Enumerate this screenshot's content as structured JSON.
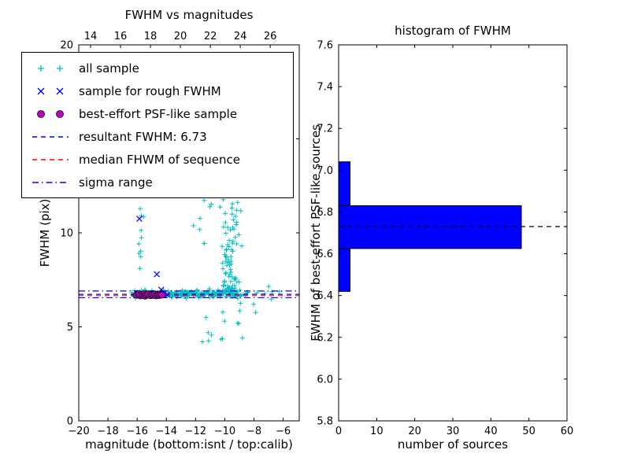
{
  "chart_data": [
    {
      "type": "scatter",
      "title": "FWHM vs magnitudes",
      "xlabel": "magnitude (bottom:isnt / top:calib)",
      "ylabel": "FWHM (pix)",
      "xlim": [
        -20,
        -4.9
      ],
      "ylim": [
        0,
        20
      ],
      "x2lim": [
        13.21,
        27.94
      ],
      "xticks": {
        "values": [
          -20,
          -18,
          -16,
          -14,
          -12,
          -10,
          -8,
          -6
        ],
        "labels": [
          "−20",
          "−18",
          "−16",
          "−14",
          "−12",
          "−10",
          "−8",
          "−6"
        ]
      },
      "x2ticks": {
        "values": [
          14,
          16,
          18,
          20,
          22,
          24,
          26
        ],
        "labels": [
          "14",
          "16",
          "18",
          "20",
          "22",
          "24",
          "26"
        ]
      },
      "yticks": {
        "values": [
          0,
          5,
          10,
          15,
          20
        ],
        "labels": [
          "0",
          "5",
          "10",
          "15",
          "20"
        ]
      },
      "series": [
        {
          "name": "all sample",
          "marker": "plus",
          "color": "#00bfbf",
          "seed": 42,
          "clusters": [
            {
              "count": 170,
              "x": {
                "dist": "uniform",
                "a": -16.4,
                "b": -8.4
              },
              "y": {
                "dist": "normal",
                "mean": 6.75,
                "sd": 0.1
              }
            },
            {
              "count": 60,
              "x": {
                "dist": "uniform",
                "a": -14.6,
                "b": -10.0
              },
              "y": {
                "dist": "normal",
                "mean": 6.75,
                "sd": 0.07
              }
            },
            {
              "count": 80,
              "x": {
                "dist": "normal",
                "mean": -9.7,
                "sd": 0.3
              },
              "y": {
                "dist": "power",
                "base": 6.85,
                "range": 5.9,
                "pow": 2.2
              }
            },
            {
              "count": 28,
              "x": {
                "dist": "uniform",
                "a": -12.3,
                "b": -8.8
              },
              "y": {
                "dist": "uniform",
                "a": 9.2,
                "b": 13.3
              }
            },
            {
              "count": 10,
              "x": {
                "dist": "normal",
                "mean": -15.75,
                "sd": 0.12
              },
              "y": {
                "dist": "uniform",
                "a": 7.6,
                "b": 11.3
              }
            },
            {
              "count": 14,
              "x": {
                "dist": "uniform",
                "a": -12.2,
                "b": -8.3
              },
              "y": {
                "dist": "uniform",
                "a": 4.2,
                "b": 6.3
              }
            },
            {
              "count": 8,
              "x": {
                "dist": "uniform",
                "a": -8.3,
                "b": -6.2
              },
              "y": {
                "dist": "normal",
                "mean": 6.6,
                "sd": 0.35
              }
            },
            {
              "count": 10,
              "x": {
                "dist": "normal",
                "mean": -9.6,
                "sd": 0.25
              },
              "y": {
                "dist": "uniform",
                "a": 12.0,
                "b": 13.6
              }
            }
          ]
        },
        {
          "name": "sample for rough FWHM",
          "marker": "x",
          "color": "#0000ff",
          "points": [
            [
              -15.85,
              10.75
            ],
            [
              -14.65,
              7.8
            ],
            [
              -15.55,
              6.72
            ],
            [
              -15.2,
              6.78
            ],
            [
              -14.95,
              6.7
            ],
            [
              -14.75,
              6.74
            ],
            [
              -14.5,
              6.68
            ],
            [
              -14.2,
              6.73
            ],
            [
              -13.95,
              6.7
            ],
            [
              -14.35,
              6.98
            ]
          ]
        },
        {
          "name": "best-effort PSF-like sample",
          "marker": "circle",
          "color": "#bf00bf",
          "edge": "#000000",
          "points": [
            [
              -16.05,
              6.7
            ],
            [
              -15.9,
              6.74
            ],
            [
              -15.8,
              6.66
            ],
            [
              -15.7,
              6.72
            ],
            [
              -15.6,
              6.68
            ],
            [
              -15.5,
              6.75
            ],
            [
              -15.45,
              6.65
            ],
            [
              -15.35,
              6.7
            ],
            [
              -15.25,
              6.73
            ],
            [
              -15.1,
              6.67
            ],
            [
              -15.0,
              6.72
            ],
            [
              -14.9,
              6.69
            ],
            [
              -14.8,
              6.74
            ],
            [
              -14.7,
              6.66
            ],
            [
              -14.6,
              6.71
            ],
            [
              -14.5,
              6.68
            ],
            [
              -14.4,
              6.73
            ],
            [
              -14.3,
              6.7
            ]
          ]
        }
      ],
      "hlines": [
        {
          "name": "resultant FWHM",
          "y": 6.73,
          "color": "#0000ff",
          "style": "dashed"
        },
        {
          "name": "median FHWM of sequence",
          "y": 6.66,
          "color": "#ff0000",
          "style": "dashed"
        },
        {
          "name": "sigma range low",
          "y": 6.55,
          "color": "#0000ff",
          "style": "dashdot"
        },
        {
          "name": "sigma range high",
          "y": 6.91,
          "color": "#0000ff",
          "style": "dashdot"
        }
      ]
    },
    {
      "type": "bar",
      "orientation": "horizontal",
      "title": "histogram of FWHM",
      "xlabel": "number of sources",
      "ylabel": "FWHM of best-effort PSF-like sources",
      "xlim": [
        0,
        60
      ],
      "ylim": [
        5.8,
        7.6
      ],
      "bin_edges": [
        6.42,
        6.625,
        6.83,
        7.04
      ],
      "counts": [
        3,
        48,
        3
      ],
      "bar_color": "#0000ff",
      "bar_edge": "#000000",
      "dashed_line": {
        "y": 6.73,
        "color": "#000000",
        "style": "dashed"
      },
      "xticks": {
        "values": [
          0,
          10,
          20,
          30,
          40,
          50,
          60
        ],
        "labels": [
          "0",
          "10",
          "20",
          "30",
          "40",
          "50",
          "60"
        ]
      },
      "yticks": {
        "values": [
          5.8,
          6.0,
          6.2,
          6.4,
          6.6,
          6.8,
          7.0,
          7.2,
          7.4,
          7.6
        ],
        "labels": [
          "5.8",
          "6.0",
          "6.2",
          "6.4",
          "6.6",
          "6.8",
          "7.0",
          "7.2",
          "7.4",
          "7.6"
        ]
      }
    }
  ],
  "legend": {
    "items": [
      {
        "label": "all sample",
        "marker": "plus",
        "color": "#00bfbf"
      },
      {
        "label": "sample for rough FWHM",
        "marker": "x",
        "color": "#0000ff"
      },
      {
        "label": "best-effort PSF-like sample",
        "marker": "circle",
        "color": "#bf00bf",
        "edge": "#000000"
      },
      {
        "label": "resultant FWHM: 6.73",
        "marker": "line-dashed",
        "color": "#0000ff"
      },
      {
        "label": "median FHWM of sequence",
        "marker": "line-dashed",
        "color": "#ff0000"
      },
      {
        "label": "sigma range",
        "marker": "line-dashdot",
        "color": "#0000ff"
      }
    ]
  }
}
